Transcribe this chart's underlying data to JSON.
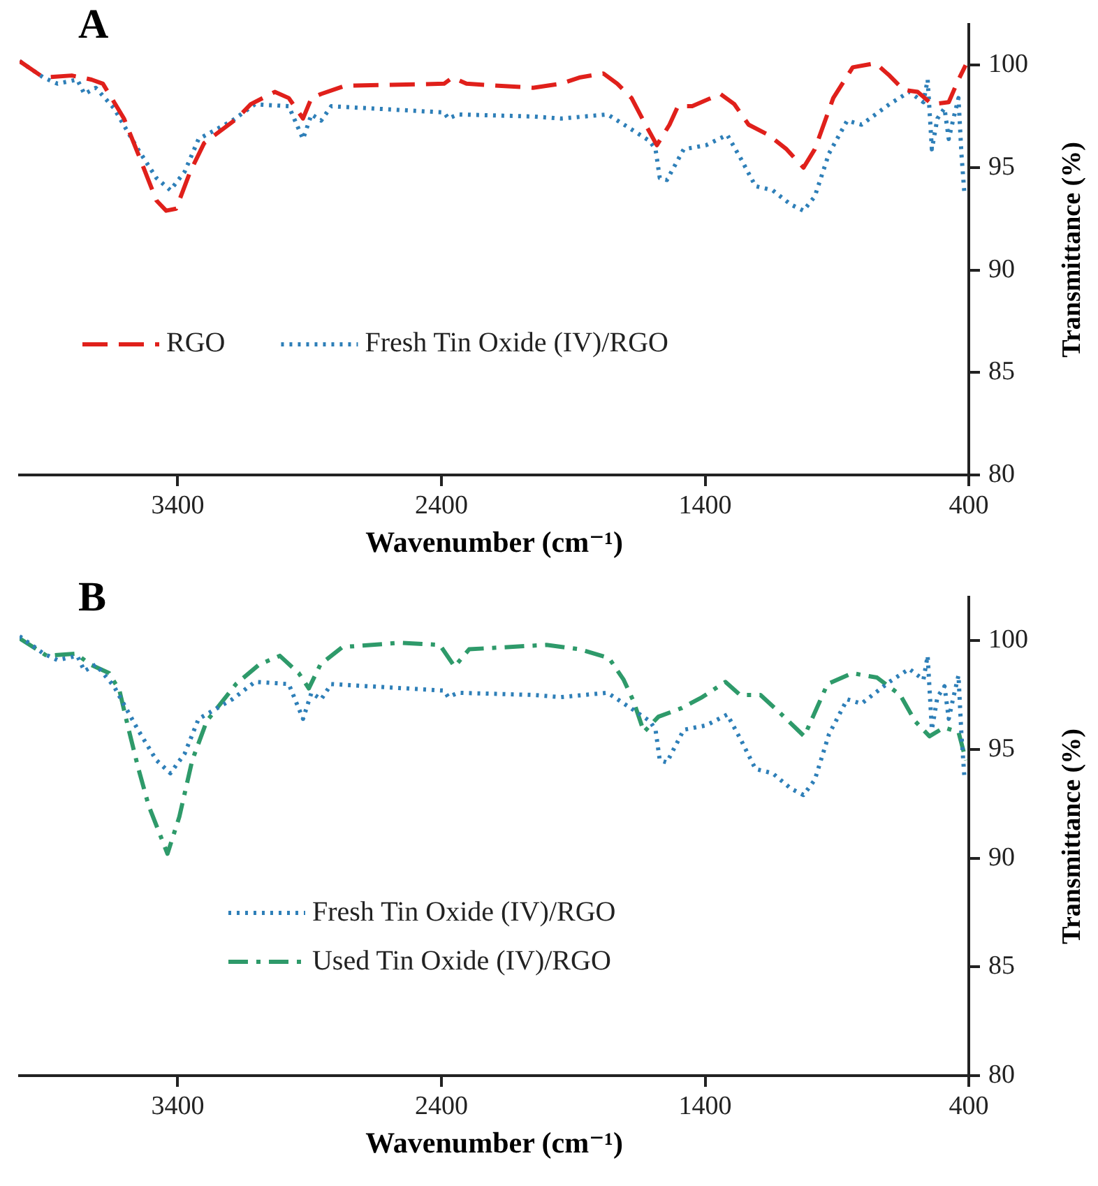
{
  "chart_data": [
    {
      "type": "line",
      "title": "A",
      "xlabel": "Wavenumber (cm⁻¹)",
      "ylabel": "Transmittance (%)",
      "xlim": [
        4000,
        400
      ],
      "xticks": [
        3400,
        2400,
        1400,
        400
      ],
      "ylim": [
        80,
        102
      ],
      "yticks": [
        80,
        85,
        90,
        95,
        100
      ],
      "grid": false,
      "legend": "left",
      "series": [
        {
          "name": "RGO",
          "color": "#e0201b",
          "line_style": "dashed",
          "x": [
            4000,
            3909,
            3802,
            3727,
            3684,
            3604,
            3551,
            3481,
            3444,
            3406,
            3353,
            3300,
            3176,
            3123,
            3032,
            2979,
            2925,
            2893,
            2856,
            2765,
            2390,
            2358,
            2305,
            2053,
            1947,
            1877,
            1786,
            1733,
            1679,
            1626,
            1583,
            1535,
            1503,
            1449,
            1342,
            1289,
            1235,
            1160,
            1091,
            1027,
            984,
            914,
            840,
            754,
            701,
            647,
            594,
            540,
            476,
            439,
            412
          ],
          "values": [
            100.2,
            99.4,
            99.5,
            99.3,
            99.1,
            97.4,
            95.7,
            93.4,
            92.9,
            93.0,
            94.8,
            96.2,
            97.4,
            98.1,
            98.7,
            98.4,
            97.4,
            98.4,
            98.6,
            99.0,
            99.1,
            99.4,
            99.1,
            98.9,
            99.1,
            99.4,
            99.6,
            99.1,
            98.4,
            97.1,
            96.1,
            97.1,
            98.0,
            98.0,
            98.6,
            98.1,
            97.1,
            96.6,
            95.9,
            95.0,
            95.9,
            98.4,
            99.9,
            100.1,
            99.5,
            98.8,
            98.7,
            98.1,
            98.2,
            99.3,
            100.0
          ]
        },
        {
          "name": "Fresh Tin Oxide (IV)/RGO",
          "color": "#2e7fb8",
          "line_style": "dotted",
          "x": [
            4000,
            3909,
            3856,
            3781,
            3754,
            3711,
            3642,
            3551,
            3481,
            3428,
            3374,
            3321,
            3193,
            3107,
            2979,
            2925,
            2893,
            2856,
            2818,
            2390,
            2374,
            2337,
            2053,
            1947,
            1770,
            1695,
            1610,
            1588,
            1572,
            1545,
            1481,
            1396,
            1316,
            1267,
            1209,
            1144,
            1075,
            1027,
            984,
            930,
            861,
            807,
            701,
            626,
            572,
            556,
            540,
            519,
            492,
            476,
            460,
            439,
            428,
            417
          ],
          "values": [
            100.2,
            99.4,
            99.1,
            99.3,
            98.6,
            98.9,
            97.9,
            95.9,
            94.5,
            93.9,
            94.8,
            96.4,
            97.3,
            98.1,
            98.0,
            96.4,
            97.6,
            97.3,
            98.0,
            97.7,
            97.4,
            97.6,
            97.5,
            97.4,
            97.6,
            97.0,
            96.3,
            95.9,
            94.5,
            94.4,
            95.9,
            96.1,
            96.6,
            95.5,
            94.1,
            93.9,
            93.2,
            92.9,
            93.6,
            95.7,
            97.3,
            97.1,
            98.1,
            98.7,
            98.2,
            99.3,
            95.9,
            97.4,
            97.9,
            96.4,
            97.3,
            98.4,
            95.7,
            93.8
          ]
        }
      ]
    },
    {
      "type": "line",
      "title": "B",
      "xlabel": "Wavenumber (cm⁻¹)",
      "ylabel": "Transmittance (%)",
      "xlim": [
        4000,
        400
      ],
      "xticks": [
        3400,
        2400,
        1400,
        400
      ],
      "ylim": [
        80,
        102
      ],
      "yticks": [
        80,
        85,
        90,
        95,
        100
      ],
      "grid": false,
      "legend": "center",
      "series": [
        {
          "name": "Fresh Tin Oxide (IV)/RGO",
          "color": "#2e7fb8",
          "line_style": "dotted",
          "x": [
            4000,
            3909,
            3856,
            3781,
            3754,
            3711,
            3642,
            3551,
            3481,
            3428,
            3374,
            3321,
            3193,
            3107,
            2979,
            2925,
            2893,
            2856,
            2818,
            2390,
            2374,
            2337,
            2053,
            1947,
            1770,
            1695,
            1610,
            1588,
            1572,
            1545,
            1481,
            1396,
            1316,
            1267,
            1209,
            1144,
            1075,
            1027,
            984,
            930,
            861,
            807,
            701,
            626,
            572,
            556,
            540,
            519,
            492,
            476,
            460,
            439,
            428,
            417
          ],
          "values": [
            100.2,
            99.4,
            99.1,
            99.3,
            98.6,
            98.9,
            97.9,
            95.9,
            94.5,
            93.9,
            94.8,
            96.4,
            97.3,
            98.1,
            98.0,
            96.4,
            97.6,
            97.3,
            98.0,
            97.7,
            97.4,
            97.6,
            97.5,
            97.4,
            97.6,
            97.0,
            96.3,
            95.9,
            94.5,
            94.4,
            95.9,
            96.1,
            96.6,
            95.5,
            94.1,
            93.9,
            93.2,
            92.9,
            93.6,
            95.7,
            97.3,
            97.1,
            98.1,
            98.7,
            98.2,
            99.3,
            95.9,
            97.4,
            97.9,
            96.4,
            97.3,
            98.4,
            95.7,
            93.8
          ]
        },
        {
          "name": "Used Tin Oxide (IV)/RGO",
          "color": "#2e9a6a",
          "line_style": "dashdot",
          "x": [
            4000,
            3897,
            3787,
            3731,
            3660,
            3621,
            3588,
            3549,
            3510,
            3439,
            3394,
            3345,
            3290,
            3179,
            3091,
            3013,
            2941,
            2903,
            2859,
            2776,
            2555,
            2406,
            2350,
            2295,
            2002,
            1875,
            1765,
            1709,
            1671,
            1632,
            1577,
            1488,
            1411,
            1323,
            1267,
            1190,
            1118,
            1024,
            991,
            936,
            842,
            748,
            660,
            604,
            549,
            494,
            439,
            411
          ],
          "values": [
            100.1,
            99.3,
            99.4,
            98.9,
            98.5,
            97.7,
            96.0,
            94.1,
            92.4,
            90.2,
            91.9,
            94.5,
            96.3,
            98.0,
            98.9,
            99.3,
            98.5,
            97.8,
            98.9,
            99.7,
            99.9,
            99.8,
            98.8,
            99.6,
            99.8,
            99.6,
            99.2,
            98.2,
            97.2,
            95.8,
            96.5,
            96.9,
            97.4,
            98.1,
            97.5,
            97.5,
            96.7,
            95.6,
            96.5,
            98.0,
            98.5,
            98.3,
            97.5,
            96.3,
            95.6,
            96.0,
            95.8,
            94.5
          ]
        }
      ]
    }
  ]
}
